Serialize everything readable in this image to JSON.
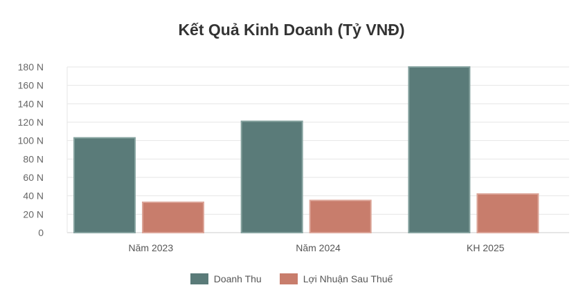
{
  "chart_data": {
    "type": "bar",
    "title": "Kết Quả Kinh Doanh (Tỷ VNĐ)",
    "categories": [
      "Năm 2023",
      "Năm 2024",
      "KH 2025"
    ],
    "series": [
      {
        "name": "Doanh Thu",
        "values": [
          103,
          121,
          180
        ],
        "color": "#5a7b79"
      },
      {
        "name": "Lợi Nhuận Sau Thuế",
        "values": [
          33,
          35,
          42
        ],
        "color": "#c87d6c"
      }
    ],
    "yticks": [
      "0",
      "20 N",
      "40 N",
      "60 N",
      "80 N",
      "100 N",
      "120 N",
      "140 N",
      "160 N",
      "180 N"
    ],
    "ylim": [
      0,
      180
    ],
    "xlabel": "",
    "ylabel": "",
    "grid": true,
    "legend_position": "bottom"
  }
}
